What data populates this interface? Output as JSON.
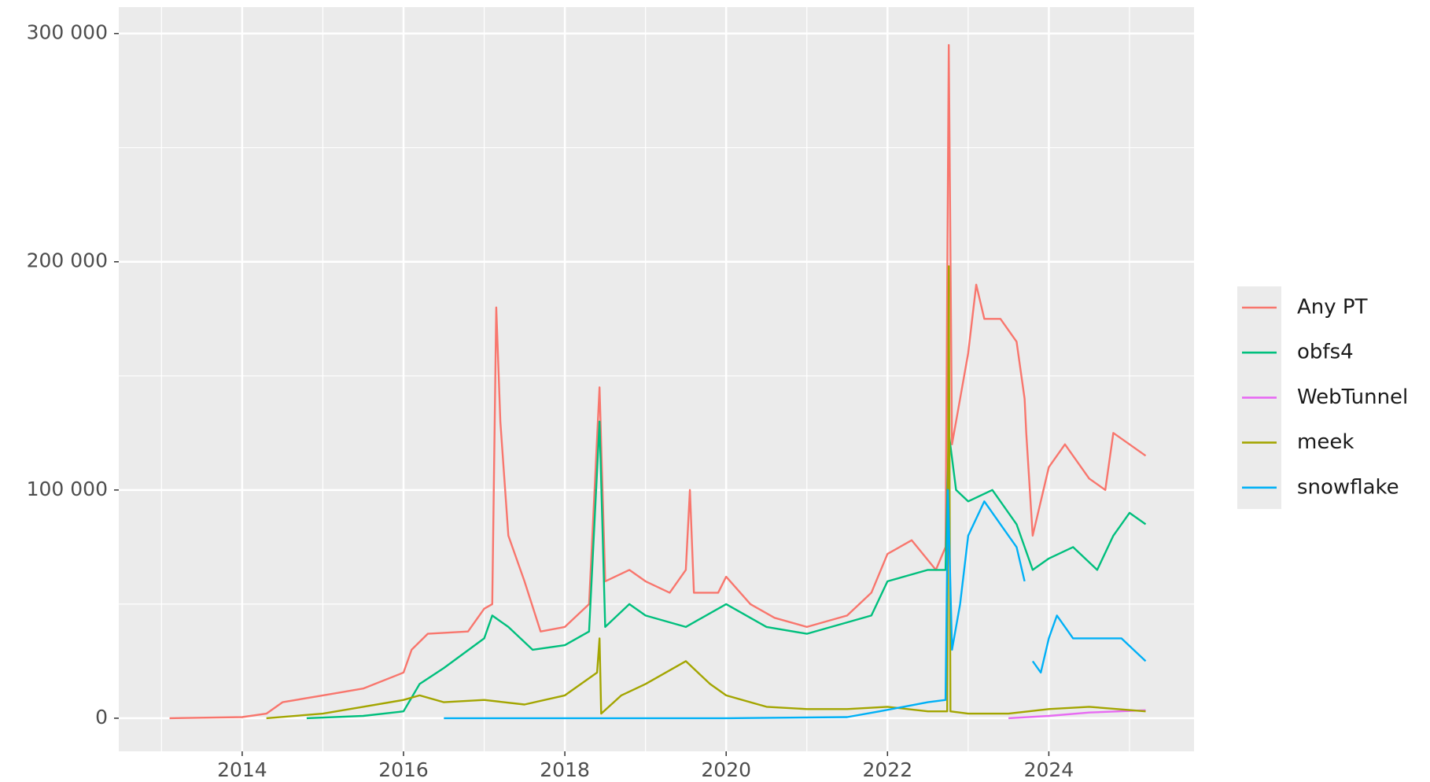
{
  "chart_data": {
    "type": "line",
    "xlim": [
      2012.47,
      2025.8
    ],
    "xticks": [
      2014,
      2016,
      2018,
      2020,
      2022,
      2024
    ],
    "ylim": [
      -14500,
      311600
    ],
    "yticks": [
      {
        "value": 0,
        "label": "0"
      },
      {
        "value": 100000,
        "label": "100 000"
      },
      {
        "value": 200000,
        "label": "200 000"
      },
      {
        "value": 300000,
        "label": "300 000"
      }
    ],
    "grid": true,
    "minor_grid": true,
    "legend": "right",
    "series": [
      {
        "name": "Any PT",
        "color": "#f8766d",
        "x": [
          2013.1,
          2014.0,
          2014.3,
          2014.5,
          2015.0,
          2015.5,
          2016.0,
          2016.1,
          2016.3,
          2016.8,
          2017.0,
          2017.1,
          2017.15,
          2017.2,
          2017.3,
          2017.5,
          2017.7,
          2018.0,
          2018.3,
          2018.43,
          2018.5,
          2018.8,
          2019.0,
          2019.3,
          2019.5,
          2019.55,
          2019.6,
          2019.9,
          2020.0,
          2020.3,
          2020.6,
          2021.0,
          2021.5,
          2021.8,
          2022.0,
          2022.3,
          2022.6,
          2022.72,
          2022.76,
          2022.8,
          2022.9,
          2023.0,
          2023.1,
          2023.2,
          2023.4,
          2023.6,
          2023.7,
          2023.72,
          2023.8,
          2024.0,
          2024.2,
          2024.5,
          2024.7,
          2024.8,
          2025.0,
          2025.2
        ],
        "values": [
          0,
          500,
          2000,
          7000,
          10000,
          13000,
          20000,
          30000,
          37000,
          38000,
          48000,
          50000,
          180000,
          130000,
          80000,
          60000,
          38000,
          40000,
          50000,
          145000,
          60000,
          65000,
          60000,
          55000,
          65000,
          100000,
          55000,
          55000,
          62000,
          50000,
          44000,
          40000,
          45000,
          55000,
          72000,
          78000,
          65000,
          75000,
          295000,
          120000,
          140000,
          160000,
          190000,
          175000,
          175000,
          165000,
          140000,
          125000,
          80000,
          110000,
          120000,
          105000,
          100000,
          125000,
          120000,
          115000
        ]
      },
      {
        "name": "obfs4",
        "color": "#00bf7d",
        "x": [
          2014.8,
          2015.5,
          2016.0,
          2016.2,
          2016.5,
          2017.0,
          2017.1,
          2017.3,
          2017.6,
          2018.0,
          2018.3,
          2018.43,
          2018.5,
          2018.8,
          2019.0,
          2019.5,
          2020.0,
          2020.5,
          2021.0,
          2021.5,
          2021.8,
          2022.0,
          2022.5,
          2022.72,
          2022.76,
          2022.85,
          2023.0,
          2023.3,
          2023.6,
          2023.8,
          2024.0,
          2024.3,
          2024.6,
          2024.8,
          2025.0,
          2025.2
        ],
        "values": [
          0,
          1000,
          3000,
          15000,
          22000,
          35000,
          45000,
          40000,
          30000,
          32000,
          38000,
          130000,
          40000,
          50000,
          45000,
          40000,
          50000,
          40000,
          37000,
          42000,
          45000,
          60000,
          65000,
          65000,
          125000,
          100000,
          95000,
          100000,
          85000,
          65000,
          70000,
          75000,
          65000,
          80000,
          90000,
          85000
        ]
      },
      {
        "name": "WebTunnel",
        "color": "#e76bf3",
        "x": [
          2023.5,
          2024.0,
          2024.5,
          2025.2
        ],
        "values": [
          0,
          1000,
          2500,
          3500
        ]
      },
      {
        "name": "meek",
        "color": "#a3a500",
        "x": [
          2014.3,
          2015.0,
          2015.5,
          2016.0,
          2016.2,
          2016.5,
          2017.0,
          2017.5,
          2018.0,
          2018.4,
          2018.43,
          2018.45,
          2018.7,
          2019.0,
          2019.5,
          2019.8,
          2020.0,
          2020.5,
          2021.0,
          2021.5,
          2022.0,
          2022.5,
          2022.74,
          2022.76,
          2022.78,
          2023.0,
          2023.5,
          2024.0,
          2024.5,
          2025.2
        ],
        "values": [
          0,
          2000,
          5000,
          8000,
          10000,
          7000,
          8000,
          6000,
          10000,
          20000,
          35000,
          2000,
          10000,
          15000,
          25000,
          15000,
          10000,
          5000,
          4000,
          4000,
          5000,
          3000,
          3000,
          198000,
          3000,
          2000,
          2000,
          4000,
          5000,
          3000
        ]
      },
      {
        "name": "snowflake",
        "color": "#00b0f6",
        "x": [
          2016.5,
          2018.0,
          2020.0,
          2021.5,
          2021.9,
          2022.2,
          2022.5,
          2022.72,
          2022.75,
          2022.8,
          2022.9,
          2023.0,
          2023.2,
          2023.4,
          2023.6,
          2023.7,
          2023.75,
          2023.8,
          2023.9,
          2024.0,
          2024.1,
          2024.3,
          2024.6,
          2024.9,
          2025.2
        ],
        "values": [
          0,
          0,
          0,
          500,
          3000,
          5000,
          7000,
          8000,
          100000,
          30000,
          50000,
          80000,
          95000,
          85000,
          75000,
          60000,
          null,
          25000,
          20000,
          35000,
          45000,
          35000,
          35000,
          35000,
          25000
        ]
      }
    ]
  }
}
